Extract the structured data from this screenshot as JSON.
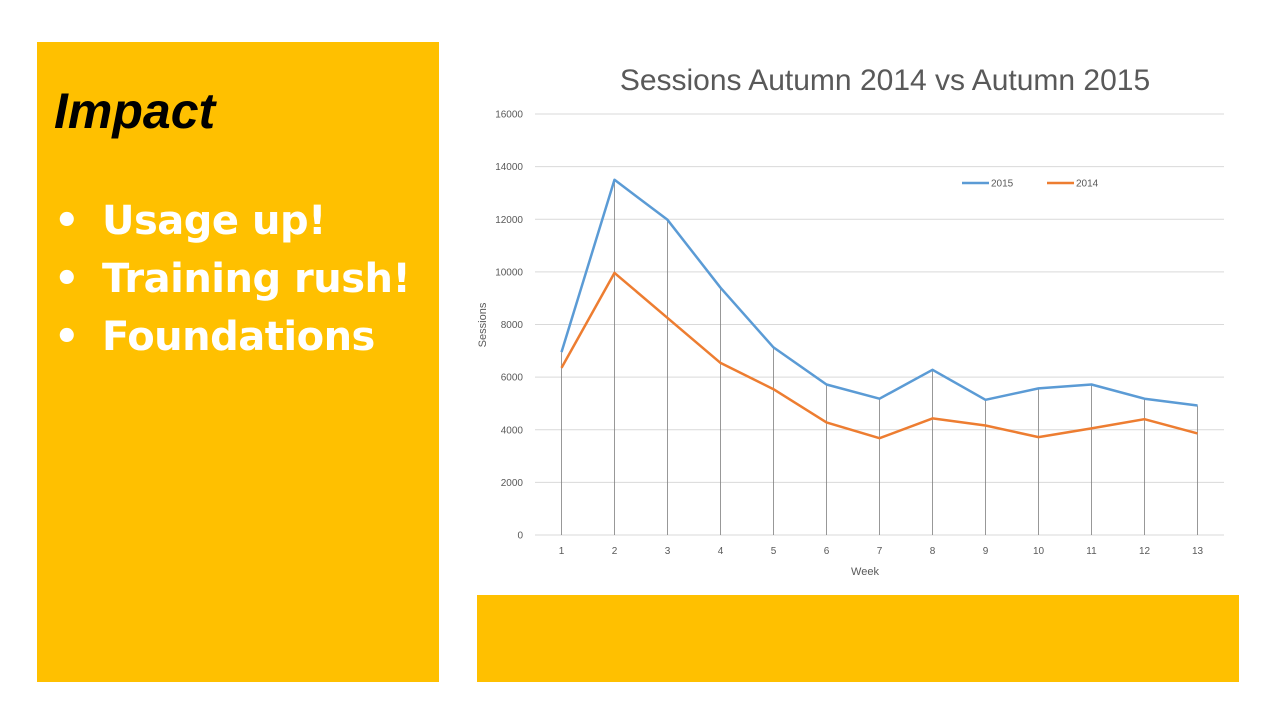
{
  "slide": {
    "title": "Impact",
    "bullets": [
      "Usage up!",
      "Training rush!",
      "Foundations"
    ]
  },
  "colors": {
    "panel": "#FFC000",
    "series_2015": "#5B9BD5",
    "series_2014": "#ED7D31"
  },
  "chart_data": {
    "type": "line",
    "title": "Sessions Autumn 2014 vs Autumn 2015",
    "xlabel": "Week",
    "ylabel": "Sessions",
    "x": [
      1,
      2,
      3,
      4,
      5,
      6,
      7,
      8,
      9,
      10,
      11,
      12,
      13
    ],
    "ylim": [
      0,
      16000
    ],
    "yticks": [
      0,
      2000,
      4000,
      6000,
      8000,
      10000,
      12000,
      14000,
      16000
    ],
    "grid": true,
    "drop_lines": true,
    "legend_position": "top-right",
    "series": [
      {
        "name": "2015",
        "color": "#5B9BD5",
        "values": [
          6950,
          13500,
          11980,
          9400,
          7130,
          5720,
          5180,
          6280,
          5140,
          5570,
          5720,
          5180,
          4920
        ]
      },
      {
        "name": "2014",
        "color": "#ED7D31",
        "values": [
          6350,
          9960,
          8250,
          6540,
          5540,
          4280,
          3680,
          4430,
          4160,
          3720,
          4050,
          4400,
          3860
        ]
      }
    ]
  }
}
